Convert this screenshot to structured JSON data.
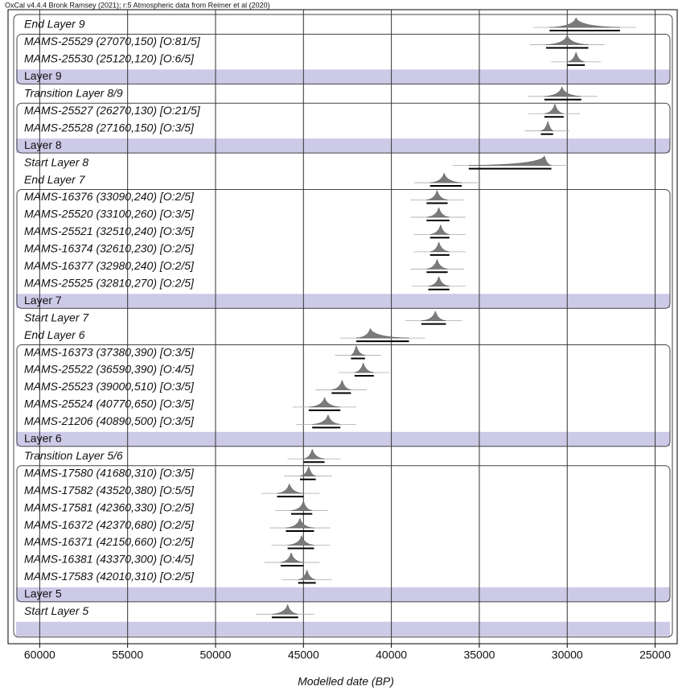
{
  "chart_data": {
    "type": "oxcal",
    "title": "OxCal v4.4.4 Bronk Ramsey (2021); r:5 Atmospheric data from Reimer et al (2020)",
    "x_label": "Modelled date (BP)",
    "xlim": [
      61800,
      23700
    ],
    "xticks": [
      60000,
      55000,
      50000,
      45000,
      40000,
      35000,
      30000,
      25000
    ],
    "grid": true,
    "color": "#7a7a7a",
    "band_color": "#cdcae8",
    "rows": [
      {
        "kind": "boundary",
        "label": "End Layer 9",
        "peak": 29500,
        "range": [
          31000,
          27000
        ]
      },
      {
        "kind": "date",
        "label": "MAMS-25529 (27070,150) [O:81/5]",
        "peak": 30000,
        "range": [
          31200,
          28800
        ]
      },
      {
        "kind": "date",
        "label": "MAMS-25530 (25120,120) [O:6/5]",
        "peak": 29500,
        "range": [
          30000,
          29000
        ]
      },
      {
        "kind": "phase",
        "label": "Layer 9"
      },
      {
        "kind": "boundary",
        "label": "Transition Layer 8/9",
        "peak": 30300,
        "range": [
          31300,
          29200
        ]
      },
      {
        "kind": "date",
        "label": "MAMS-25527 (26270,130) [O:21/5]",
        "peak": 30700,
        "range": [
          31300,
          30200
        ]
      },
      {
        "kind": "date",
        "label": "MAMS-25528 (27160,150) [O:3/5]",
        "peak": 31100,
        "range": [
          31500,
          30800
        ]
      },
      {
        "kind": "phase",
        "label": "Layer 8"
      },
      {
        "kind": "boundary",
        "label": "Start Layer 8",
        "peak": 31300,
        "range": [
          35600,
          30900
        ]
      },
      {
        "kind": "boundary",
        "label": "End Layer 7",
        "peak": 37000,
        "range": [
          37800,
          36000
        ]
      },
      {
        "kind": "date",
        "label": "MAMS-16376 (33090,240) [O:2/5]",
        "peak": 37400,
        "range": [
          38000,
          36800
        ]
      },
      {
        "kind": "date",
        "label": "MAMS-25520 (33100,260) [O:3/5]",
        "peak": 37300,
        "range": [
          38000,
          36700
        ]
      },
      {
        "kind": "date",
        "label": "MAMS-25521 (32510,240) [O:3/5]",
        "peak": 37200,
        "range": [
          37800,
          36700
        ]
      },
      {
        "kind": "date",
        "label": "MAMS-16374 (32610,230) [O:2/5]",
        "peak": 37300,
        "range": [
          37800,
          36700
        ]
      },
      {
        "kind": "date",
        "label": "MAMS-16377 (32980,240) [O:2/5]",
        "peak": 37400,
        "range": [
          38000,
          36800
        ]
      },
      {
        "kind": "date",
        "label": "MAMS-25525 (32810,270) [O:2/5]",
        "peak": 37300,
        "range": [
          37900,
          36700
        ]
      },
      {
        "kind": "phase",
        "label": "Layer 7"
      },
      {
        "kind": "boundary",
        "label": "Start Layer 7",
        "peak": 37500,
        "range": [
          38300,
          36900
        ]
      },
      {
        "kind": "boundary",
        "label": "End Layer 6",
        "peak": 41200,
        "range": [
          42000,
          39000
        ]
      },
      {
        "kind": "date",
        "label": "MAMS-16373 (37380,390) [O:3/5]",
        "peak": 42000,
        "range": [
          42300,
          41500
        ]
      },
      {
        "kind": "date",
        "label": "MAMS-25522 (36590,390) [O:4/5]",
        "peak": 41600,
        "range": [
          42100,
          41000
        ]
      },
      {
        "kind": "date",
        "label": "MAMS-25523 (39000,510) [O:3/5]",
        "peak": 42800,
        "range": [
          43400,
          42300
        ]
      },
      {
        "kind": "date",
        "label": "MAMS-25524 (40770,650) [O:3/5]",
        "peak": 43800,
        "range": [
          44700,
          42900
        ]
      },
      {
        "kind": "date",
        "label": "MAMS-21206 (40890,500) [O:3/5]",
        "peak": 43600,
        "range": [
          44500,
          42900
        ]
      },
      {
        "kind": "phase",
        "label": "Layer 6"
      },
      {
        "kind": "boundary",
        "label": "Transition Layer 5/6",
        "peak": 44500,
        "range": [
          45000,
          43800
        ]
      },
      {
        "kind": "date",
        "label": "MAMS-17580 (41680,310) [O:3/5]",
        "peak": 44700,
        "range": [
          45200,
          44300
        ]
      },
      {
        "kind": "date",
        "label": "MAMS-17582 (43520,380) [O:5/5]",
        "peak": 45800,
        "range": [
          46500,
          45000
        ]
      },
      {
        "kind": "date",
        "label": "MAMS-17581 (42360,330) [O:2/5]",
        "peak": 45000,
        "range": [
          45700,
          44500
        ]
      },
      {
        "kind": "date",
        "label": "MAMS-16372 (42370,680) [O:2/5]",
        "peak": 45200,
        "range": [
          46000,
          44400
        ]
      },
      {
        "kind": "date",
        "label": "MAMS-16371 (42150,660) [O:2/5]",
        "peak": 45100,
        "range": [
          45900,
          44400
        ]
      },
      {
        "kind": "date",
        "label": "MAMS-16381 (43370,300) [O:4/5]",
        "peak": 45700,
        "range": [
          46300,
          45000
        ]
      },
      {
        "kind": "date",
        "label": "MAMS-17583 (42010,310) [O:2/5]",
        "peak": 44800,
        "range": [
          45300,
          44300
        ]
      },
      {
        "kind": "phase",
        "label": "Layer 5"
      },
      {
        "kind": "boundary",
        "label": "Start Layer 5",
        "peak": 45900,
        "range": [
          46800,
          45300
        ]
      },
      {
        "kind": "phase",
        "label": null
      }
    ]
  }
}
